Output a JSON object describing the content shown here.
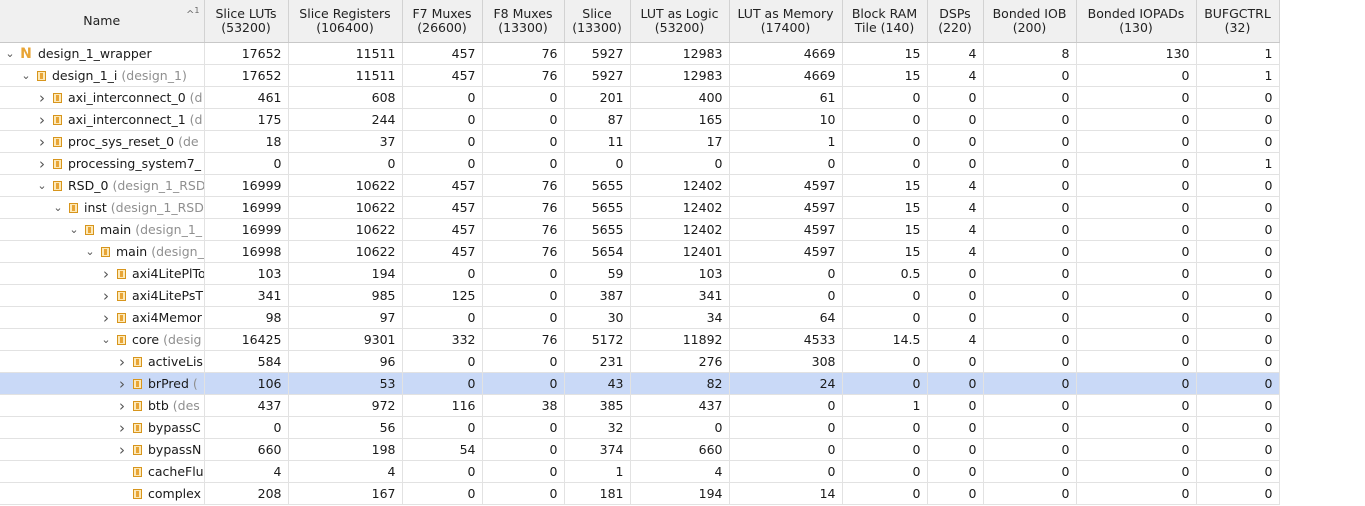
{
  "columns": [
    {
      "l1": "Name",
      "l2": ""
    },
    {
      "l1": "Slice LUTs",
      "l2": "(53200)"
    },
    {
      "l1": "Slice Registers",
      "l2": "(106400)"
    },
    {
      "l1": "F7 Muxes",
      "l2": "(26600)"
    },
    {
      "l1": "F8 Muxes",
      "l2": "(13300)"
    },
    {
      "l1": "Slice",
      "l2": "(13300)"
    },
    {
      "l1": "LUT as Logic",
      "l2": "(53200)"
    },
    {
      "l1": "LUT as Memory",
      "l2": "(17400)"
    },
    {
      "l1": "Block RAM",
      "l2": "Tile (140)"
    },
    {
      "l1": "DSPs",
      "l2": "(220)"
    },
    {
      "l1": "Bonded IOB",
      "l2": "(200)"
    },
    {
      "l1": "Bonded IOPADs",
      "l2": "(130)"
    },
    {
      "l1": "BUFGCTRL",
      "l2": "(32)"
    }
  ],
  "sort_indicator": {
    "arrow": "^",
    "order": "1"
  },
  "rows": [
    {
      "depth": 0,
      "expander": "v",
      "icon": "top-module-icon",
      "name": "design_1_wrapper",
      "sub": "",
      "values": [
        "17652",
        "11511",
        "457",
        "76",
        "5927",
        "12983",
        "4669",
        "15",
        "4",
        "8",
        "130",
        "1"
      ]
    },
    {
      "depth": 1,
      "expander": "v",
      "icon": "module-icon",
      "name": "design_1_i",
      "sub": "(design_1)",
      "values": [
        "17652",
        "11511",
        "457",
        "76",
        "5927",
        "12983",
        "4669",
        "15",
        "4",
        "0",
        "0",
        "1"
      ]
    },
    {
      "depth": 2,
      "expander": ">",
      "icon": "module-icon",
      "name": "axi_interconnect_0",
      "sub": "(d",
      "values": [
        "461",
        "608",
        "0",
        "0",
        "201",
        "400",
        "61",
        "0",
        "0",
        "0",
        "0",
        "0"
      ]
    },
    {
      "depth": 2,
      "expander": ">",
      "icon": "module-icon",
      "name": "axi_interconnect_1",
      "sub": "(d",
      "values": [
        "175",
        "244",
        "0",
        "0",
        "87",
        "165",
        "10",
        "0",
        "0",
        "0",
        "0",
        "0"
      ]
    },
    {
      "depth": 2,
      "expander": ">",
      "icon": "module-icon",
      "name": "proc_sys_reset_0",
      "sub": "(de",
      "values": [
        "18",
        "37",
        "0",
        "0",
        "11",
        "17",
        "1",
        "0",
        "0",
        "0",
        "0",
        "0"
      ]
    },
    {
      "depth": 2,
      "expander": ">",
      "icon": "module-icon",
      "name": "processing_system7_",
      "sub": "",
      "values": [
        "0",
        "0",
        "0",
        "0",
        "0",
        "0",
        "0",
        "0",
        "0",
        "0",
        "0",
        "1"
      ]
    },
    {
      "depth": 2,
      "expander": "v",
      "icon": "module-icon",
      "name": "RSD_0",
      "sub": "(design_1_RSD",
      "values": [
        "16999",
        "10622",
        "457",
        "76",
        "5655",
        "12402",
        "4597",
        "15",
        "4",
        "0",
        "0",
        "0"
      ]
    },
    {
      "depth": 3,
      "expander": "v",
      "icon": "module-icon",
      "name": "inst",
      "sub": "(design_1_RSD",
      "values": [
        "16999",
        "10622",
        "457",
        "76",
        "5655",
        "12402",
        "4597",
        "15",
        "4",
        "0",
        "0",
        "0"
      ]
    },
    {
      "depth": 4,
      "expander": "v",
      "icon": "module-icon",
      "name": "main",
      "sub": "(design_1_",
      "values": [
        "16999",
        "10622",
        "457",
        "76",
        "5655",
        "12402",
        "4597",
        "15",
        "4",
        "0",
        "0",
        "0"
      ]
    },
    {
      "depth": 5,
      "expander": "v",
      "icon": "module-icon",
      "name": "main",
      "sub": "(design_",
      "values": [
        "16998",
        "10622",
        "457",
        "76",
        "5654",
        "12401",
        "4597",
        "15",
        "4",
        "0",
        "0",
        "0"
      ]
    },
    {
      "depth": 6,
      "expander": ">",
      "icon": "module-icon",
      "name": "axi4LitePlTo",
      "sub": "",
      "values": [
        "103",
        "194",
        "0",
        "0",
        "59",
        "103",
        "0",
        "0.5",
        "0",
        "0",
        "0",
        "0"
      ]
    },
    {
      "depth": 6,
      "expander": ">",
      "icon": "module-icon",
      "name": "axi4LitePsT",
      "sub": "",
      "values": [
        "341",
        "985",
        "125",
        "0",
        "387",
        "341",
        "0",
        "0",
        "0",
        "0",
        "0",
        "0"
      ]
    },
    {
      "depth": 6,
      "expander": ">",
      "icon": "module-icon",
      "name": "axi4Memor",
      "sub": "",
      "values": [
        "98",
        "97",
        "0",
        "0",
        "30",
        "34",
        "64",
        "0",
        "0",
        "0",
        "0",
        "0"
      ]
    },
    {
      "depth": 6,
      "expander": "v",
      "icon": "module-icon",
      "name": "core",
      "sub": "(desig",
      "values": [
        "16425",
        "9301",
        "332",
        "76",
        "5172",
        "11892",
        "4533",
        "14.5",
        "4",
        "0",
        "0",
        "0"
      ]
    },
    {
      "depth": 7,
      "expander": ">",
      "icon": "module-icon",
      "name": "activeLis",
      "sub": "",
      "values": [
        "584",
        "96",
        "0",
        "0",
        "231",
        "276",
        "308",
        "0",
        "0",
        "0",
        "0",
        "0"
      ]
    },
    {
      "depth": 7,
      "expander": ">",
      "icon": "module-icon",
      "name": "brPred",
      "sub": "(",
      "selected": true,
      "values": [
        "106",
        "53",
        "0",
        "0",
        "43",
        "82",
        "24",
        "0",
        "0",
        "0",
        "0",
        "0"
      ]
    },
    {
      "depth": 7,
      "expander": ">",
      "icon": "module-icon",
      "name": "btb",
      "sub": "(des",
      "values": [
        "437",
        "972",
        "116",
        "38",
        "385",
        "437",
        "0",
        "1",
        "0",
        "0",
        "0",
        "0"
      ]
    },
    {
      "depth": 7,
      "expander": ">",
      "icon": "module-icon",
      "name": "bypassC",
      "sub": "",
      "values": [
        "0",
        "56",
        "0",
        "0",
        "32",
        "0",
        "0",
        "0",
        "0",
        "0",
        "0",
        "0"
      ]
    },
    {
      "depth": 7,
      "expander": ">",
      "icon": "module-icon",
      "name": "bypassN",
      "sub": "",
      "values": [
        "660",
        "198",
        "54",
        "0",
        "374",
        "660",
        "0",
        "0",
        "0",
        "0",
        "0",
        "0"
      ]
    },
    {
      "depth": 7,
      "expander": "",
      "icon": "module-icon",
      "name": "cacheFlu",
      "sub": "",
      "values": [
        "4",
        "4",
        "0",
        "0",
        "1",
        "4",
        "0",
        "0",
        "0",
        "0",
        "0",
        "0"
      ]
    },
    {
      "depth": 7,
      "expander": "",
      "icon": "module-icon",
      "name": "complex",
      "sub": "",
      "values": [
        "208",
        "167",
        "0",
        "0",
        "181",
        "194",
        "14",
        "0",
        "0",
        "0",
        "0",
        "0"
      ]
    }
  ],
  "colors": {
    "header_bg": "#f0f0f0",
    "selected_row": "#c9d9f7",
    "icon_accent": "#e8a536",
    "subtext": "#8f8f8f"
  }
}
